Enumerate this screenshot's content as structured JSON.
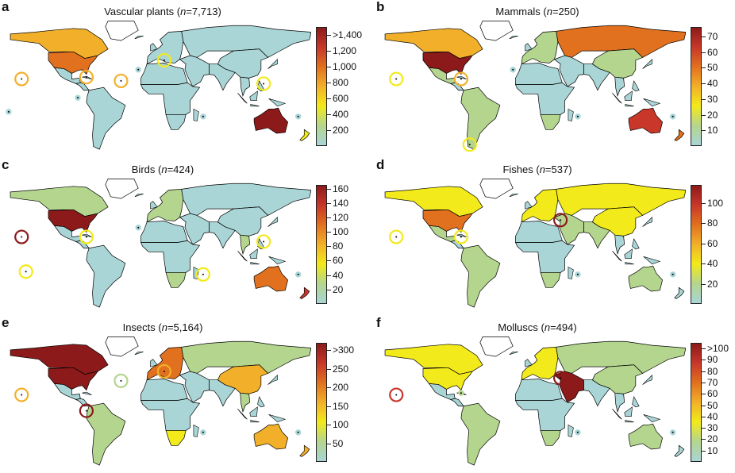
{
  "colors": {
    "scale": [
      "#a9d5d6",
      "#b4d58e",
      "#f2ea1a",
      "#f2b02a",
      "#e1711e",
      "#c8372a",
      "#8c1a1a"
    ],
    "land_none": "#ffffff",
    "border": "#000000"
  },
  "panels": [
    {
      "letter": "a",
      "title": "Vascular plants",
      "n_label": "n",
      "n_value": "=7,713",
      "legend": {
        "min": 0,
        "max": 1500,
        "ticks": [
          {
            "value": 200,
            "label": "200"
          },
          {
            "value": 400,
            "label": "400"
          },
          {
            "value": 600,
            "label": "600"
          },
          {
            "value": 800,
            "label": "800"
          },
          {
            "value": 1000,
            "label": "1,000"
          },
          {
            "value": 1200,
            "label": "1,200"
          },
          {
            "value": 1400,
            "label": ">1,400"
          }
        ]
      },
      "regions": {
        "canada": 800,
        "usa": 1000,
        "mexico": 200,
        "central_america": 120,
        "greenland": 0,
        "south_america": 150,
        "europe": 180,
        "russia": 160,
        "china": 180,
        "india": 100,
        "middle_east": 120,
        "north_africa": 30,
        "subsaharan_africa": 100,
        "southern_africa": 160,
        "southeast_asia": 180,
        "australia": 1400,
        "new_zealand": 600
      },
      "islands": [
        {
          "lon": -155,
          "lat": 20,
          "value": 800,
          "ring": true
        },
        {
          "lon": -40,
          "lat": 18,
          "value": 700,
          "ring": true
        },
        {
          "lon": -80,
          "lat": 22,
          "value": 700,
          "ring": true
        },
        {
          "lon": 125,
          "lat": 15,
          "value": 600,
          "ring": true
        },
        {
          "lon": 10,
          "lat": 40,
          "value": 600,
          "ring": true
        },
        {
          "lon": -90,
          "lat": 0,
          "value": 150,
          "ring": false
        },
        {
          "lon": 55,
          "lat": -20,
          "value": 200,
          "ring": false
        },
        {
          "lon": 165,
          "lat": -20,
          "value": 150,
          "ring": false
        },
        {
          "lon": -170,
          "lat": -15,
          "value": 100,
          "ring": false
        },
        {
          "lon": -20,
          "lat": 30,
          "value": 200,
          "ring": false
        }
      ]
    },
    {
      "letter": "b",
      "title": "Mammals",
      "n_label": "n",
      "n_value": "=250",
      "legend": {
        "min": 0,
        "max": 76,
        "ticks": [
          {
            "value": 10,
            "label": "10"
          },
          {
            "value": 20,
            "label": "20"
          },
          {
            "value": 30,
            "label": "30"
          },
          {
            "value": 40,
            "label": "40"
          },
          {
            "value": 50,
            "label": "50"
          },
          {
            "value": 60,
            "label": "60"
          },
          {
            "value": 70,
            "label": "70"
          }
        ]
      },
      "regions": {
        "canada": 35,
        "usa": 70,
        "mexico": 15,
        "central_america": 10,
        "greenland": 0,
        "south_america": 20,
        "europe": 20,
        "russia": 45,
        "china": 20,
        "india": 10,
        "middle_east": 10,
        "north_africa": 5,
        "subsaharan_africa": 5,
        "southern_africa": 20,
        "southeast_asia": 10,
        "australia": 65,
        "new_zealand": 50
      },
      "islands": [
        {
          "lon": -155,
          "lat": 20,
          "value": 30,
          "ring": true
        },
        {
          "lon": 55,
          "lat": -20,
          "value": 10,
          "ring": false
        },
        {
          "lon": -80,
          "lat": 20,
          "value": 35,
          "ring": true
        },
        {
          "lon": -70,
          "lat": -50,
          "value": 30,
          "ring": true
        },
        {
          "lon": 165,
          "lat": -20,
          "value": 10,
          "ring": false
        },
        {
          "lon": -20,
          "lat": 30,
          "value": 10,
          "ring": false
        }
      ]
    },
    {
      "letter": "c",
      "title": "Birds",
      "n_label": "n",
      "n_value": "=424",
      "legend": {
        "min": 0,
        "max": 165,
        "ticks": [
          {
            "value": 20,
            "label": "20"
          },
          {
            "value": 40,
            "label": "40"
          },
          {
            "value": 60,
            "label": "60"
          },
          {
            "value": 80,
            "label": "80"
          },
          {
            "value": 100,
            "label": "100"
          },
          {
            "value": 120,
            "label": "120"
          },
          {
            "value": 140,
            "label": "140"
          },
          {
            "value": 160,
            "label": "160"
          }
        ]
      },
      "regions": {
        "canada": 35,
        "usa": 150,
        "mexico": 15,
        "central_america": 10,
        "greenland": 0,
        "south_america": 20,
        "europe": 25,
        "russia": 15,
        "china": 20,
        "india": 15,
        "middle_east": 10,
        "north_africa": 5,
        "subsaharan_africa": 10,
        "southern_africa": 25,
        "southeast_asia": 30,
        "australia": 100,
        "new_zealand": 120
      },
      "islands": [
        {
          "lon": -155,
          "lat": 20,
          "value": 150,
          "ring": true
        },
        {
          "lon": -80,
          "lat": 20,
          "value": 60,
          "ring": true
        },
        {
          "lon": 125,
          "lat": 15,
          "value": 70,
          "ring": true
        },
        {
          "lon": 55,
          "lat": -20,
          "value": 60,
          "ring": true
        },
        {
          "lon": -150,
          "lat": -17,
          "value": 50,
          "ring": true
        },
        {
          "lon": 165,
          "lat": -20,
          "value": 15,
          "ring": false
        },
        {
          "lon": -20,
          "lat": 30,
          "value": 20,
          "ring": false
        }
      ]
    },
    {
      "letter": "d",
      "title": "Fishes",
      "n_label": "n",
      "n_value": "=537",
      "legend": {
        "min": 0,
        "max": 118,
        "ticks": [
          {
            "value": 20,
            "label": "20"
          },
          {
            "value": 40,
            "label": "40"
          },
          {
            "value": 60,
            "label": "60"
          },
          {
            "value": 80,
            "label": "80"
          },
          {
            "value": 100,
            "label": "100"
          }
        ]
      },
      "regions": {
        "canada": 40,
        "usa": 75,
        "mexico": 20,
        "central_america": 15,
        "greenland": 0,
        "south_america": 20,
        "europe": 35,
        "russia": 50,
        "china": 50,
        "india": 20,
        "middle_east": 20,
        "north_africa": 10,
        "subsaharan_africa": 10,
        "southern_africa": 25,
        "southeast_asia": 15,
        "australia": 30,
        "new_zealand": 10
      },
      "islands": [
        {
          "lon": -155,
          "lat": 20,
          "value": 50,
          "ring": true
        },
        {
          "lon": -80,
          "lat": 20,
          "value": 50,
          "ring": true
        },
        {
          "lon": 35,
          "lat": 38,
          "value": 110,
          "ring": true
        },
        {
          "lon": 165,
          "lat": -20,
          "value": 10,
          "ring": false
        },
        {
          "lon": 55,
          "lat": -20,
          "value": 15,
          "ring": false
        }
      ]
    },
    {
      "letter": "e",
      "title": "Insects",
      "n_label": "n",
      "n_value": "=5,164",
      "legend": {
        "min": 0,
        "max": 320,
        "ticks": [
          {
            "value": 50,
            "label": "50"
          },
          {
            "value": 100,
            "label": "100"
          },
          {
            "value": 150,
            "label": "150"
          },
          {
            "value": 200,
            "label": "200"
          },
          {
            "value": 250,
            "label": "250"
          },
          {
            "value": 300,
            "label": ">300"
          }
        ]
      },
      "regions": {
        "canada": 300,
        "usa": 300,
        "mexico": 40,
        "central_america": 30,
        "greenland": 0,
        "south_america": 60,
        "europe": 200,
        "russia": 80,
        "china": 150,
        "india": 40,
        "middle_east": 30,
        "north_africa": 20,
        "subsaharan_africa": 30,
        "southern_africa": 100,
        "southeast_asia": 60,
        "australia": 150,
        "new_zealand": 150
      },
      "islands": [
        {
          "lon": -155,
          "lat": 20,
          "value": 150,
          "ring": true
        },
        {
          "lon": -80,
          "lat": 3,
          "value": 310,
          "ring": true
        },
        {
          "lon": 10,
          "lat": 45,
          "value": 160,
          "ring": true
        },
        {
          "lon": -40,
          "lat": 35,
          "value": 80,
          "ring": true
        },
        {
          "lon": 55,
          "lat": -20,
          "value": 30,
          "ring": false
        },
        {
          "lon": 165,
          "lat": -20,
          "value": 30,
          "ring": false
        }
      ]
    },
    {
      "letter": "f",
      "title": "Molluscs",
      "n_label": "n",
      "n_value": "=494",
      "legend": {
        "min": 0,
        "max": 105,
        "ticks": [
          {
            "value": 10,
            "label": "10"
          },
          {
            "value": 20,
            "label": "20"
          },
          {
            "value": 30,
            "label": "30"
          },
          {
            "value": 40,
            "label": "40"
          },
          {
            "value": 50,
            "label": "50"
          },
          {
            "value": 60,
            "label": "60"
          },
          {
            "value": 70,
            "label": "70"
          },
          {
            "value": 80,
            "label": "80"
          },
          {
            "value": 90,
            "label": "90"
          },
          {
            "value": 100,
            "label": ">100"
          }
        ]
      },
      "regions": {
        "canada": 30,
        "usa": 30,
        "mexico": 10,
        "central_america": 10,
        "greenland": 0,
        "south_america": 20,
        "europe": 30,
        "russia": 25,
        "china": 20,
        "india": 10,
        "middle_east": 90,
        "north_africa": 5,
        "subsaharan_africa": 5,
        "southern_africa": 25,
        "southeast_asia": 10,
        "australia": 20,
        "new_zealand": 10
      },
      "islands": [
        {
          "lon": -155,
          "lat": 20,
          "value": 75,
          "ring": true
        },
        {
          "lon": 35,
          "lat": 38,
          "value": 95,
          "ring": true
        },
        {
          "lon": 55,
          "lat": -20,
          "value": 10,
          "ring": false
        },
        {
          "lon": 165,
          "lat": -20,
          "value": 10,
          "ring": false
        },
        {
          "lon": -80,
          "lat": 22,
          "value": 15,
          "ring": false
        }
      ]
    }
  ]
}
